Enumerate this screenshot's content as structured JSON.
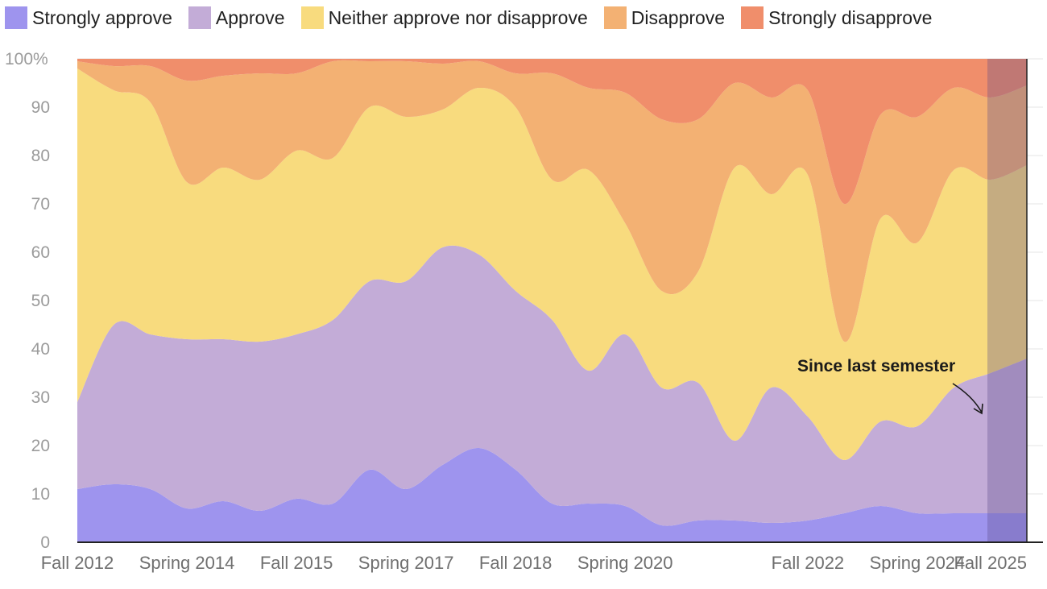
{
  "colors": {
    "strongly_approve": "#9e94ee",
    "approve": "#c3acd7",
    "neither": "#f8db7e",
    "disapprove": "#f3b173",
    "strongly_disapprove": "#f08e6b",
    "highlight": "#5a4a8a",
    "grid": "#e6e6e6",
    "axis": "#222222"
  },
  "legend": [
    {
      "label": "Strongly approve",
      "color": "#9e94ee"
    },
    {
      "label": "Approve",
      "color": "#c3acd7"
    },
    {
      "label": "Neither approve nor disapprove",
      "color": "#f8db7e"
    },
    {
      "label": "Disapprove",
      "color": "#f3b173"
    },
    {
      "label": "Strongly disapprove",
      "color": "#f08e6b"
    }
  ],
  "annotation": {
    "text": "Since last semester"
  },
  "chart_data": {
    "type": "area",
    "stacked": true,
    "title": "",
    "xlabel": "",
    "ylabel": "",
    "ylim": [
      0,
      100
    ],
    "ytick_values": [
      0,
      10,
      20,
      30,
      40,
      50,
      60,
      70,
      80,
      90,
      100
    ],
    "ytick_labels": [
      "0",
      "10",
      "20",
      "30",
      "40",
      "50",
      "60",
      "70",
      "80",
      "90",
      "100%"
    ],
    "x": [
      "Fall 2012",
      "Spring 2013",
      "Fall 2013",
      "Spring 2014",
      "Fall 2014",
      "Spring 2015",
      "Fall 2015",
      "Spring 2016",
      "Fall 2016",
      "Spring 2017",
      "Fall 2017",
      "Spring 2018",
      "Fall 2018",
      "Spring 2019",
      "Fall 2019",
      "Spring 2020",
      "Fall 2020",
      "Spring 2021",
      "Fall 2021",
      "Spring 2022",
      "Fall 2022",
      "Spring 2023",
      "Fall 2023",
      "Spring 2024",
      "Fall 2024",
      "Spring 2025",
      "Fall 2025"
    ],
    "xtick_labels": [
      "Fall 2012",
      "Spring 2014",
      "Fall 2015",
      "Spring 2017",
      "Fall 2018",
      "Spring 2020",
      "Fall 2022",
      "Spring 2024",
      "Fall 2025"
    ],
    "highlight_last": true,
    "series": [
      {
        "name": "Strongly approve",
        "values": [
          11,
          12,
          11,
          7,
          8.5,
          6.5,
          9,
          8,
          15,
          11,
          16,
          19.5,
          15,
          8,
          8,
          7.5,
          3.5,
          4.5,
          4.5,
          4,
          4.5,
          6,
          7.5,
          6,
          6,
          6,
          6
        ]
      },
      {
        "name": "Approve",
        "values": [
          18,
          33,
          32,
          35,
          33.5,
          35,
          34,
          38,
          39,
          43,
          45,
          40,
          37,
          38,
          27.5,
          35.5,
          28.5,
          28.5,
          16.5,
          28,
          21.5,
          11,
          17.5,
          18,
          26,
          29,
          32
        ]
      },
      {
        "name": "Neither approve nor disapprove",
        "values": [
          69,
          48.5,
          48,
          32.5,
          35.5,
          33.5,
          38,
          33.5,
          36,
          34,
          28.5,
          34.5,
          38,
          29,
          41.5,
          23,
          20,
          23,
          56.5,
          40,
          50,
          24.5,
          42,
          38,
          45,
          40,
          40
        ]
      },
      {
        "name": "Disapprove",
        "values": [
          1.5,
          5,
          7.5,
          21,
          19,
          22,
          16,
          20,
          9.5,
          11.5,
          9.5,
          5.5,
          7,
          22,
          17,
          27,
          35.5,
          31.5,
          17.5,
          20,
          17.5,
          28.5,
          21.5,
          26,
          17,
          17,
          16.5
        ]
      },
      {
        "name": "Strongly disapprove",
        "values": [
          0.5,
          1.5,
          1.5,
          4.5,
          3.5,
          3,
          3,
          0.5,
          0.5,
          0.5,
          1,
          0.5,
          3,
          3,
          6,
          7,
          12.5,
          12.5,
          5,
          8,
          6.5,
          30,
          11.5,
          12,
          6,
          8,
          5.5
        ]
      }
    ]
  }
}
